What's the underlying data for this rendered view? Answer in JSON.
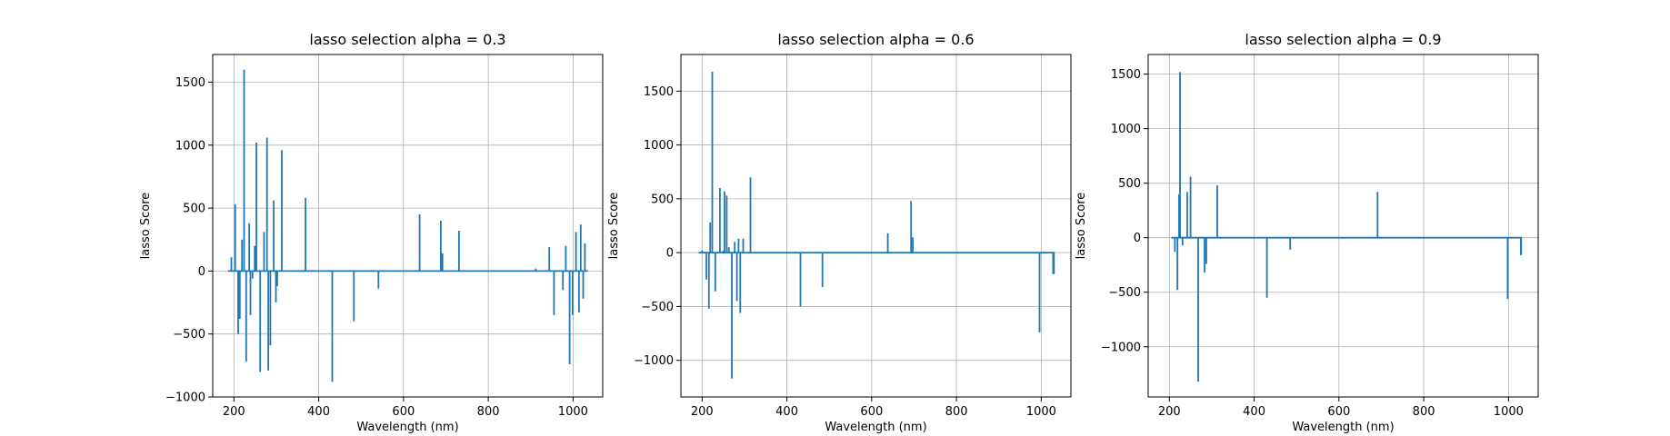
{
  "chart_data": [
    {
      "type": "line",
      "title": "lasso selection alpha = 0.3",
      "xlabel": "Wavelength (nm)",
      "ylabel": "lasso Score",
      "xlim": [
        150,
        1070
      ],
      "ylim": [
        -1000,
        1720
      ],
      "xticks": [
        200,
        400,
        600,
        800,
        1000
      ],
      "yticks": [
        -1000,
        -500,
        0,
        500,
        1000,
        1500
      ],
      "grid": true,
      "series": [
        {
          "color": "#1f77b4",
          "spikes": [
            [
              194,
              110
            ],
            [
              203,
              530
            ],
            [
              210,
              -500
            ],
            [
              214,
              -380
            ],
            [
              219,
              250
            ],
            [
              224,
              1600
            ],
            [
              229,
              -720
            ],
            [
              236,
              380
            ],
            [
              239,
              -350
            ],
            [
              244,
              -60
            ],
            [
              249,
              200
            ],
            [
              253,
              1020
            ],
            [
              262,
              -800
            ],
            [
              271,
              310
            ],
            [
              278,
              1060
            ],
            [
              281,
              -790
            ],
            [
              286,
              -590
            ],
            [
              294,
              560
            ],
            [
              299,
              -250
            ],
            [
              302,
              -120
            ],
            [
              313,
              960
            ],
            [
              369,
              580
            ],
            [
              432,
              -880
            ],
            [
              483,
              -400
            ],
            [
              541,
              -140
            ],
            [
              638,
              450
            ],
            [
              688,
              400
            ],
            [
              692,
              140
            ],
            [
              731,
              320
            ],
            [
              912,
              20
            ],
            [
              944,
              190
            ],
            [
              955,
              -350
            ],
            [
              976,
              -150
            ],
            [
              983,
              200
            ],
            [
              992,
              -740
            ],
            [
              999,
              -350
            ],
            [
              1007,
              310
            ],
            [
              1014,
              -330
            ],
            [
              1018,
              370
            ],
            [
              1024,
              -220
            ],
            [
              1028,
              220
            ]
          ],
          "baseline_end": 1035
        }
      ]
    },
    {
      "type": "line",
      "title": "lasso selection alpha = 0.6",
      "xlabel": "Wavelength (nm)",
      "ylabel": "lasso Score",
      "xlim": [
        150,
        1070
      ],
      "ylim": [
        -1340,
        1840
      ],
      "xticks": [
        200,
        400,
        600,
        800,
        1000
      ],
      "yticks": [
        -1000,
        -500,
        0,
        500,
        1000,
        1500
      ],
      "grid": true,
      "series": [
        {
          "color": "#1f77b4",
          "spikes": [
            [
              200,
              20
            ],
            [
              210,
              -250
            ],
            [
              216,
              -520
            ],
            [
              219,
              280
            ],
            [
              224,
              1680
            ],
            [
              231,
              -360
            ],
            [
              242,
              600
            ],
            [
              250,
              20
            ],
            [
              253,
              570
            ],
            [
              258,
              530
            ],
            [
              263,
              50
            ],
            [
              270,
              -1170
            ],
            [
              277,
              100
            ],
            [
              282,
              -450
            ],
            [
              286,
              130
            ],
            [
              290,
              -560
            ],
            [
              297,
              130
            ],
            [
              314,
              700
            ],
            [
              432,
              -500
            ],
            [
              484,
              -320
            ],
            [
              638,
              180
            ],
            [
              693,
              480
            ],
            [
              697,
              140
            ],
            [
              996,
              -740
            ],
            [
              1028,
              -200
            ]
          ],
          "baseline_end": 1030
        }
      ]
    },
    {
      "type": "line",
      "title": "lasso selection alpha = 0.9",
      "xlabel": "Wavelength (nm)",
      "ylabel": "lasso Score",
      "xlim": [
        150,
        1070
      ],
      "ylim": [
        -1460,
        1680
      ],
      "xticks": [
        200,
        400,
        600,
        800,
        1000
      ],
      "yticks": [
        -1000,
        -500,
        0,
        500,
        1000,
        1500
      ],
      "grid": true,
      "series": [
        {
          "color": "#1f77b4",
          "spikes": [
            [
              213,
              -130
            ],
            [
              219,
              -480
            ],
            [
              223,
              400
            ],
            [
              225,
              1520
            ],
            [
              231,
              -70
            ],
            [
              242,
              420
            ],
            [
              250,
              560
            ],
            [
              268,
              -1320
            ],
            [
              283,
              -320
            ],
            [
              287,
              -240
            ],
            [
              313,
              480
            ],
            [
              430,
              -550
            ],
            [
              485,
              -110
            ],
            [
              691,
              420
            ],
            [
              998,
              -560
            ],
            [
              1029,
              -160
            ]
          ],
          "baseline_end": 1030
        }
      ]
    }
  ]
}
